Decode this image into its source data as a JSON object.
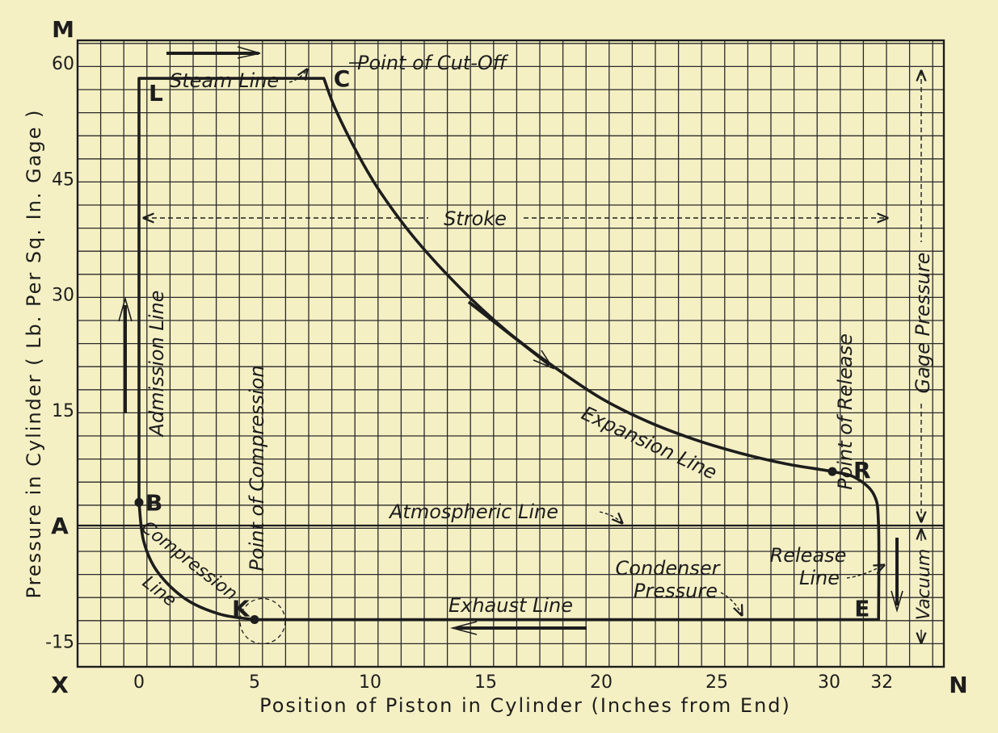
{
  "chart_data": {
    "type": "line",
    "title": "",
    "xlabel": "Position of Piston in Cylinder (Inches from End)",
    "ylabel": "Pressure in Cylinder ( Lb. Per Sq. In. Gage )",
    "xlim": [
      -3,
      35
    ],
    "ylim": [
      -15,
      60
    ],
    "grid": true,
    "x_ticks": [
      "0",
      "5",
      "10",
      "15",
      "20",
      "25",
      "30",
      "32"
    ],
    "y_ticks": [
      "60",
      "45",
      "30",
      "15",
      "-15"
    ],
    "axis_letters": {
      "top_left": "M",
      "bottom_left": "X",
      "bottom_right": "N",
      "atmosphere": "A"
    },
    "series": [
      {
        "values": [
          [
            0,
            3
          ],
          [
            0,
            58
          ],
          [
            8,
            58
          ],
          [
            8.5,
            54
          ],
          [
            9.5,
            48
          ],
          [
            10.5,
            43
          ],
          [
            12,
            37
          ],
          [
            14,
            30.5
          ],
          [
            16,
            25
          ],
          [
            18,
            20.5
          ],
          [
            20,
            16.5
          ],
          [
            22,
            13.5
          ],
          [
            24,
            11.2
          ],
          [
            26,
            9.4
          ],
          [
            28,
            8
          ],
          [
            30,
            7
          ],
          [
            31,
            6.2
          ],
          [
            31.8,
            4
          ],
          [
            32,
            0
          ],
          [
            32,
            -12.2
          ],
          [
            5,
            -12.2
          ],
          [
            3.5,
            -11.5
          ],
          [
            2,
            -9.5
          ],
          [
            0.8,
            -6
          ],
          [
            0.2,
            -2
          ],
          [
            0,
            3
          ]
        ]
      }
    ],
    "points": [
      {
        "label": "L",
        "x": 0,
        "y": 58
      },
      {
        "label": "C",
        "x": 8,
        "y": 58
      },
      {
        "label": "R",
        "x": 30,
        "y": 7
      },
      {
        "label": "E",
        "x": 32,
        "y": -12.2
      },
      {
        "label": "K",
        "x": 5,
        "y": -12.2
      },
      {
        "label": "B",
        "x": 0,
        "y": 3
      }
    ],
    "annotations": {
      "cutoff": "Point of Cut-Off",
      "steam_line": "Steam Line",
      "admission": "Admission Line",
      "stroke": "Stroke",
      "gage_pressure": "Gage Pressure",
      "expansion": "Expansion Line",
      "release_point": "Point of Release",
      "atmospheric": "Atmospheric Line",
      "compression_point": "Point of Compression",
      "compression_1": "Compression",
      "compression_2": "Line",
      "condenser_1": "Condenser",
      "condenser_2": "Pressure",
      "release_line_1": "Release",
      "release_line_2": "Line",
      "exhaust": "Exhaust Line",
      "vacuum": "Vacuum"
    },
    "colors": {
      "background": "#f5f0c4",
      "ink": "#1d1d1d",
      "grid": "#2a2a2a"
    }
  }
}
